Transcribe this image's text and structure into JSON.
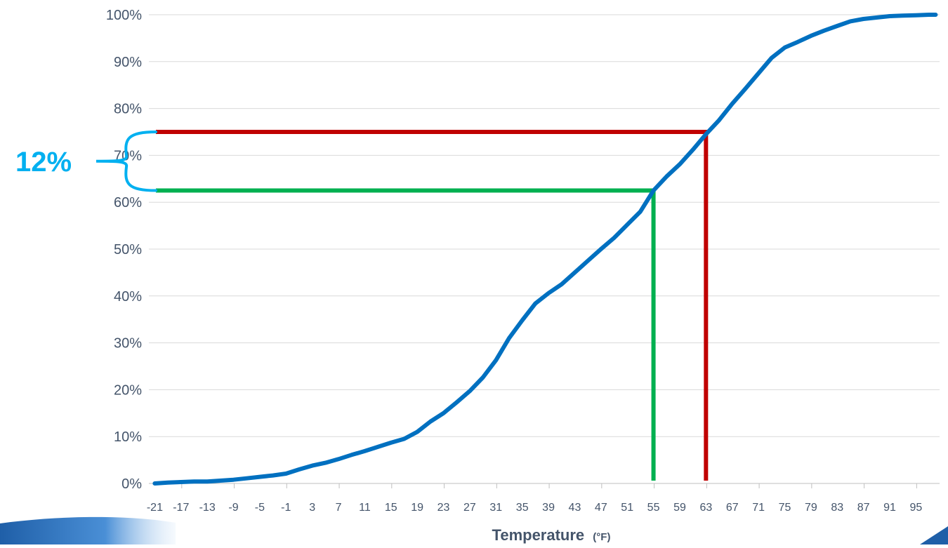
{
  "chart_data": {
    "type": "line",
    "xlabel": "Temperature",
    "xlabel_unit": "(°F)",
    "ylabel": "",
    "title": "",
    "x_tick_labels": [
      "-21",
      "-17",
      "-13",
      "-9",
      "-5",
      "-1",
      "3",
      "7",
      "11",
      "15",
      "19",
      "23",
      "27",
      "31",
      "35",
      "39",
      "43",
      "47",
      "51",
      "55",
      "59",
      "63",
      "67",
      "71",
      "75",
      "79",
      "83",
      "87",
      "91",
      "95"
    ],
    "x_range": [
      -21,
      98
    ],
    "ylim": [
      0,
      1
    ],
    "y_ticks": [
      0,
      0.1,
      0.2,
      0.3,
      0.4,
      0.5,
      0.6,
      0.7,
      0.8,
      0.9,
      1.0
    ],
    "y_tick_labels": [
      "0%",
      "10%",
      "20%",
      "30%",
      "40%",
      "50%",
      "60%",
      "70%",
      "80%",
      "90%",
      "100%"
    ],
    "grid": "horizontal",
    "series": [
      {
        "color": "#0070c0",
        "x": [
          -21,
          -19,
          -17,
          -15,
          -13,
          -11,
          -9,
          -7,
          -5,
          -3,
          -1,
          1,
          3,
          5,
          7,
          9,
          11,
          13,
          15,
          17,
          19,
          21,
          23,
          25,
          27,
          29,
          31,
          33,
          35,
          37,
          39,
          41,
          43,
          45,
          47,
          49,
          51,
          53,
          55,
          57,
          59,
          61,
          63,
          65,
          67,
          69,
          71,
          73,
          75,
          77,
          79,
          81,
          83,
          85,
          87,
          89,
          91,
          93,
          95,
          97,
          98
        ],
        "y": [
          0,
          0.002,
          0.003,
          0.004,
          0.004,
          0.006,
          0.008,
          0.011,
          0.014,
          0.017,
          0.021,
          0.03,
          0.038,
          0.044,
          0.052,
          0.061,
          0.069,
          0.078,
          0.087,
          0.095,
          0.11,
          0.132,
          0.15,
          0.173,
          0.197,
          0.226,
          0.263,
          0.31,
          0.348,
          0.384,
          0.406,
          0.425,
          0.45,
          0.475,
          0.5,
          0.524,
          0.552,
          0.58,
          0.625,
          0.655,
          0.681,
          0.712,
          0.745,
          0.775,
          0.81,
          0.842,
          0.875,
          0.908,
          0.93,
          0.942,
          0.955,
          0.966,
          0.976,
          0.986,
          0.991,
          0.994,
          0.997,
          0.998,
          0.999,
          1.0,
          1.0
        ]
      }
    ],
    "markers": [
      {
        "name": "green-line",
        "color": "#00b050",
        "x": 55,
        "y": 0.625
      },
      {
        "name": "red-line",
        "color": "#c00000",
        "x": 63,
        "y": 0.75
      }
    ],
    "annotation": {
      "text": "12%",
      "color": "#00b0f0",
      "from_y": 0.625,
      "to_y": 0.75
    }
  }
}
